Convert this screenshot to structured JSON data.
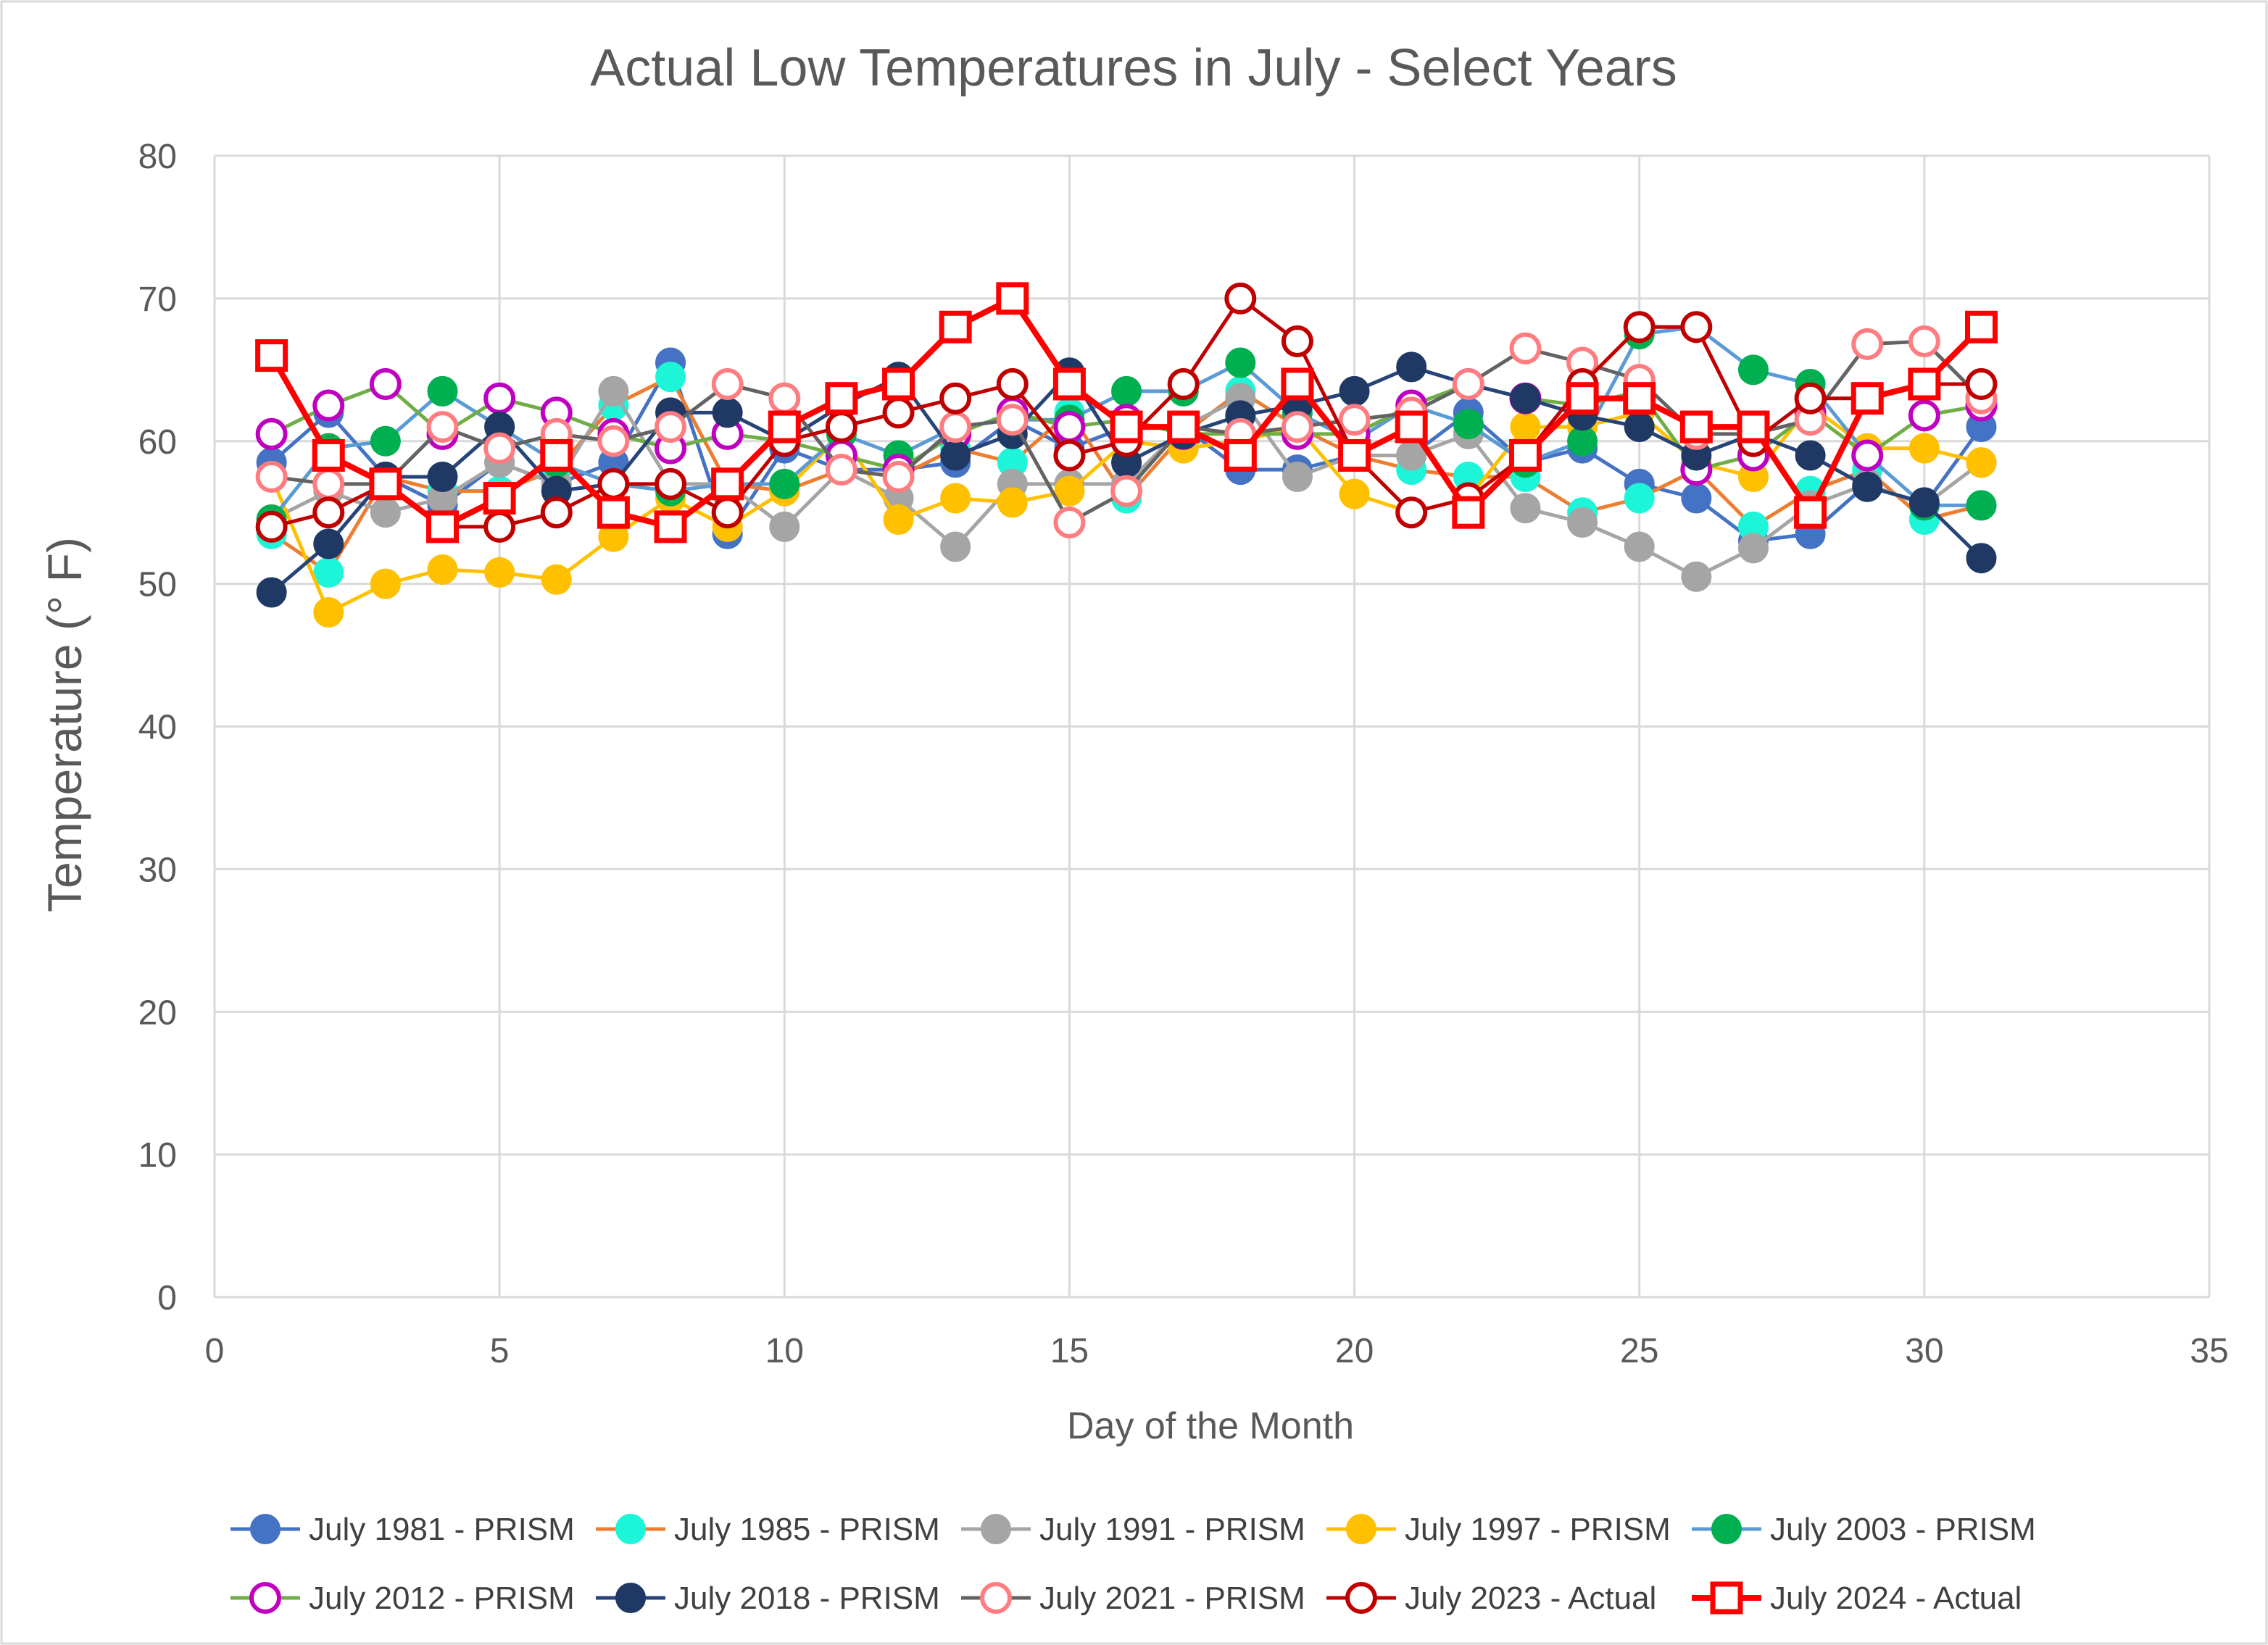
{
  "chart_data": {
    "type": "line",
    "title": "Actual Low Temperatures in July - Select Years",
    "xlabel": "Day of the Month",
    "ylabel": "Temperature (° F)",
    "xlim": [
      0,
      35
    ],
    "ylim": [
      0,
      80
    ],
    "xticks": [
      0,
      5,
      10,
      15,
      20,
      25,
      30,
      35
    ],
    "yticks": [
      0,
      10,
      20,
      30,
      40,
      50,
      60,
      70,
      80
    ],
    "grid": true,
    "legend_position": "bottom",
    "x": [
      1,
      2,
      3,
      4,
      5,
      6,
      7,
      8,
      9,
      10,
      11,
      12,
      13,
      14,
      15,
      16,
      17,
      18,
      19,
      20,
      21,
      22,
      23,
      24,
      25,
      26,
      27,
      28,
      29,
      30,
      31
    ],
    "series": [
      {
        "name": "July 1981 - PRISM",
        "line_color": "#4472C4",
        "marker_color": "#4472C4",
        "marker": "circle-filled",
        "values": [
          58.5,
          62,
          57.5,
          55.5,
          58.5,
          57,
          58.5,
          65.5,
          53.5,
          59.5,
          58,
          58,
          58.5,
          61.5,
          59.5,
          61,
          61,
          58,
          58,
          59,
          59,
          62,
          58.5,
          59.5,
          57,
          56,
          53,
          53.5,
          57,
          55.5,
          61
        ]
      },
      {
        "name": "July 1985 - PRISM",
        "line_color": "#ED7D31",
        "marker_color": "#1DF5D8",
        "marker": "circle-filled",
        "values": [
          53.5,
          50.8,
          57.5,
          56.5,
          56.5,
          58,
          62.5,
          64.5,
          57,
          56.5,
          58,
          57.5,
          59.5,
          58.5,
          62,
          56,
          60.5,
          63.5,
          61,
          59,
          58,
          57.5,
          57.5,
          55,
          56,
          58,
          54,
          56.5,
          58,
          54.5,
          55.5
        ]
      },
      {
        "name": "July 1991 - PRISM",
        "line_color": "#A5A5A5",
        "marker_color": "#A5A5A5",
        "marker": "circle-filled",
        "values": [
          54.5,
          56.5,
          55,
          56,
          58.5,
          57,
          63.5,
          57,
          57,
          54,
          58,
          56,
          52.6,
          57,
          57,
          57,
          61,
          63,
          57.5,
          59,
          59,
          60.5,
          55.3,
          54.3,
          52.6,
          50.5,
          52.5,
          55.5,
          57,
          55.5,
          58.5
        ]
      },
      {
        "name": "July 1997 - PRISM",
        "line_color": "#FFC000",
        "marker_color": "#FFC000",
        "marker": "circle-filled",
        "values": [
          57.5,
          48,
          50,
          51,
          50.8,
          50.3,
          53.3,
          56,
          54,
          56.5,
          60.5,
          54.5,
          56,
          55.7,
          56.5,
          60,
          59.5,
          60,
          61,
          56.3,
          55,
          56,
          61,
          61,
          62,
          58.5,
          57.5,
          62.5,
          59.5,
          59.5,
          58.5
        ]
      },
      {
        "name": "July 2003 - PRISM",
        "line_color": "#5B9BD5",
        "marker_color": "#00B050",
        "marker": "circle-filled",
        "values": [
          54.5,
          59.5,
          60,
          63.5,
          61,
          58.5,
          57,
          56.5,
          57,
          57,
          60.5,
          59,
          61,
          61.5,
          61.5,
          63.5,
          63.5,
          65.5,
          62,
          60,
          62.5,
          61.2,
          58.5,
          60,
          67.5,
          68,
          65,
          64,
          59,
          55.5,
          55.5
        ]
      },
      {
        "name": "July 2012 - PRISM",
        "line_color": "#70AD47",
        "marker_color": "#C000C0",
        "marker": "circle-open",
        "values": [
          60.5,
          62.5,
          64,
          60.5,
          63,
          62,
          60.5,
          59.5,
          60.5,
          60,
          59,
          58,
          60.5,
          62,
          61,
          61.5,
          60.5,
          60.5,
          60.5,
          60.5,
          62.5,
          64,
          63,
          62.5,
          63.5,
          58,
          59,
          62,
          59,
          61.8,
          62.5
        ]
      },
      {
        "name": "July 2018 - PRISM",
        "line_color": "#264478",
        "marker_color": "#203864",
        "marker": "circle-filled",
        "values": [
          49.4,
          52.8,
          57.5,
          57.5,
          61,
          56.5,
          57,
          62,
          62,
          60,
          62.5,
          64.5,
          59,
          60.5,
          64.8,
          58.5,
          60.5,
          61.8,
          62.5,
          63.5,
          65.2,
          64,
          63,
          61.8,
          61,
          59,
          60.5,
          59,
          56.8,
          55.7,
          51.8
        ]
      },
      {
        "name": "July 2021 - PRISM",
        "line_color": "#636363",
        "marker_color": "#FF7C80",
        "marker": "circle-open",
        "values": [
          57.5,
          57,
          57,
          61,
          59.5,
          60.5,
          60,
          61,
          64,
          63,
          58,
          57.5,
          61,
          61.5,
          54.3,
          56.5,
          61,
          60.5,
          61,
          61.5,
          62,
          64,
          66.5,
          65.5,
          64.3,
          60.5,
          60.5,
          61.5,
          66.8,
          67,
          63
        ]
      },
      {
        "name": "July 2023 - Actual",
        "line_color": "#C00000",
        "marker_color": "#C00000",
        "marker": "circle-open",
        "values": [
          54,
          55,
          57,
          54,
          54,
          55,
          57,
          57,
          55,
          60,
          61,
          62,
          63,
          64,
          59,
          60,
          64,
          70,
          67,
          59,
          55,
          56,
          59,
          64,
          68,
          68,
          60,
          63,
          63,
          64,
          64
        ]
      },
      {
        "name": "July 2024 - Actual",
        "line_color": "#FF0000",
        "marker_color": "#FF0000",
        "marker": "square-open",
        "values": [
          66,
          59,
          57,
          54,
          56,
          59,
          55,
          54,
          57,
          61,
          63,
          64,
          68,
          70,
          64,
          61,
          61,
          59,
          64,
          59,
          61,
          55,
          59,
          63,
          63,
          61,
          61,
          55,
          63,
          64,
          68
        ]
      }
    ]
  }
}
